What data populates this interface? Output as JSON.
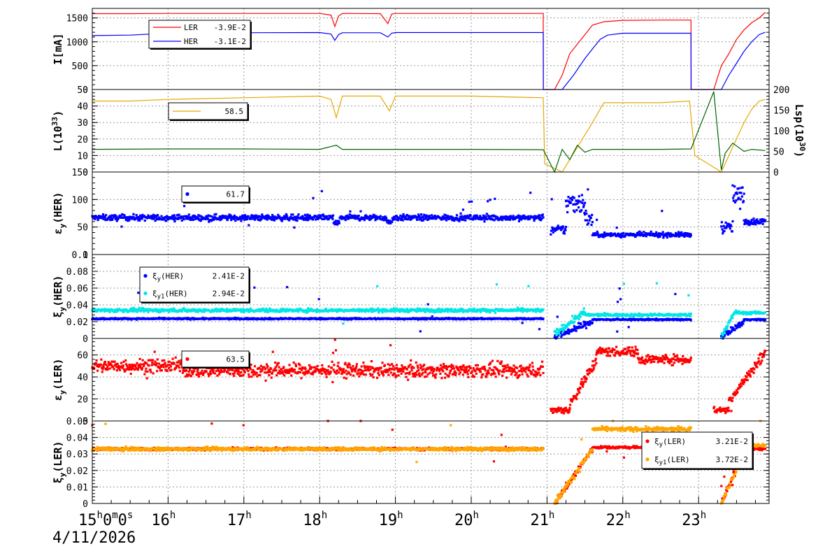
{
  "date_label": "4/11/2026",
  "x_ticks": [
    {
      "main": "15",
      "sup": "h",
      "main2": "0",
      "sup2": "m",
      "main3": "0",
      "sup3": "s"
    },
    {
      "main": "16",
      "sup": "h"
    },
    {
      "main": "17",
      "sup": "h"
    },
    {
      "main": "18",
      "sup": "h"
    },
    {
      "main": "19",
      "sup": "h"
    },
    {
      "main": "20",
      "sup": "h"
    },
    {
      "main": "21",
      "sup": "h"
    },
    {
      "main": "22",
      "sup": "h"
    },
    {
      "main": "23",
      "sup": "h"
    }
  ],
  "colors": {
    "ler": "#ff0000",
    "her": "#0000ff",
    "lum": "#e6a800",
    "lsp": "#006400",
    "cyan": "#00e5e5",
    "orange": "#ffa500",
    "grid": "#999999"
  },
  "chart_data": [
    {
      "type": "line",
      "ylabel": "I[mA]",
      "ylim": [
        0,
        1700
      ],
      "yticks": [
        "0",
        "500",
        "1000",
        "1500"
      ],
      "yticks_values": [
        0,
        500,
        1000,
        1500
      ],
      "legend": [
        {
          "name": "LER",
          "value": "-3.9E-2",
          "color": "#ff0000"
        },
        {
          "name": "HER",
          "value": "-3.1E-2",
          "color": "#0000ff"
        }
      ],
      "series": [
        {
          "name": "LER",
          "x": [
            15.0,
            15.5,
            16.0,
            17.0,
            18.0,
            18.15,
            18.2,
            18.25,
            18.3,
            18.8,
            18.9,
            18.95,
            19.0,
            20.0,
            20.95,
            20.951,
            21.1,
            21.2,
            21.3,
            21.45,
            21.6,
            21.75,
            22.0,
            22.5,
            22.9,
            22.901,
            23.2,
            23.3,
            23.4,
            23.5,
            23.6,
            23.7,
            23.8,
            23.88
          ],
          "y": [
            1590,
            1590,
            1595,
            1595,
            1595,
            1560,
            1320,
            1540,
            1595,
            1590,
            1380,
            1580,
            1595,
            1595,
            1595,
            0,
            0,
            300,
            750,
            1050,
            1350,
            1420,
            1450,
            1455,
            1455,
            0,
            0,
            500,
            750,
            1050,
            1250,
            1400,
            1500,
            1620
          ]
        },
        {
          "name": "HER",
          "x": [
            15.0,
            15.5,
            16.0,
            17.0,
            18.0,
            18.15,
            18.2,
            18.25,
            18.3,
            18.8,
            18.9,
            18.95,
            19.0,
            20.0,
            20.95,
            20.951,
            21.2,
            21.35,
            21.5,
            21.6,
            21.7,
            21.8,
            22.0,
            22.5,
            22.9,
            22.901,
            23.3,
            23.4,
            23.5,
            23.6,
            23.7,
            23.8,
            23.88
          ],
          "y": [
            1130,
            1140,
            1180,
            1190,
            1195,
            1160,
            1030,
            1150,
            1190,
            1190,
            1100,
            1180,
            1195,
            1195,
            1195,
            0,
            0,
            300,
            650,
            850,
            1050,
            1140,
            1180,
            1180,
            1180,
            0,
            0,
            300,
            550,
            800,
            1000,
            1150,
            1200
          ]
        }
      ]
    },
    {
      "type": "line",
      "ylabel": "L(10^33)",
      "ylabel_main": "L(10",
      "ylabel_sup": "33",
      "ylabel_end": ")",
      "ylim": [
        0,
        50
      ],
      "yticks": [
        "0",
        "10",
        "20",
        "30",
        "40",
        "50"
      ],
      "yticks_values": [
        0,
        10,
        20,
        30,
        40,
        50
      ],
      "y2label": "Lsp(10^30)",
      "y2label_main": "Lsp(10",
      "y2label_sup": "30",
      "y2label_end": ")",
      "y2lim": [
        0,
        200
      ],
      "y2ticks": [
        "0",
        "50",
        "100",
        "150",
        "200"
      ],
      "y2ticks_values": [
        0,
        50,
        100,
        150,
        200
      ],
      "legend": [
        {
          "name": "",
          "value": "58.5",
          "color": "#e6a800"
        }
      ],
      "series": [
        {
          "name": "L",
          "x": [
            15.0,
            15.5,
            16.0,
            17.0,
            18.0,
            18.15,
            18.22,
            18.3,
            18.8,
            18.92,
            19.0,
            20.0,
            20.95,
            20.97,
            21.2,
            21.4,
            21.6,
            21.75,
            22.0,
            22.5,
            22.88,
            22.95,
            23.3,
            23.4,
            23.5,
            23.6,
            23.7,
            23.8,
            23.88
          ],
          "y": [
            43,
            43,
            44,
            45,
            46,
            44,
            33,
            46,
            46,
            37,
            46,
            46,
            45,
            5,
            0,
            15,
            30,
            42,
            42,
            42,
            43,
            10,
            0,
            10,
            20,
            30,
            38,
            43,
            44
          ]
        },
        {
          "name": "Lsp",
          "axis": "y2",
          "x": [
            15.0,
            16.0,
            17.0,
            18.0,
            18.22,
            18.3,
            19.0,
            20.0,
            20.95,
            21.1,
            21.2,
            21.3,
            21.4,
            21.5,
            21.6,
            21.8,
            22.0,
            22.5,
            22.9,
            23.2,
            23.3,
            23.35,
            23.45,
            23.6,
            23.7,
            23.88
          ],
          "y": [
            55,
            56,
            56,
            55,
            65,
            55,
            55,
            55,
            54,
            0,
            55,
            30,
            65,
            48,
            55,
            55,
            55,
            55,
            56,
            195,
            5,
            45,
            70,
            50,
            55,
            52
          ]
        }
      ]
    },
    {
      "type": "scatter",
      "ylabel": "εy(HER)",
      "ylabel_main": "ε",
      "ylabel_sub": "y",
      "ylabel_end": "(HER)",
      "ylim": [
        0,
        150
      ],
      "yticks": [
        "0",
        "50",
        "100",
        "150"
      ],
      "yticks_values": [
        0,
        50,
        100,
        150
      ],
      "legend": [
        {
          "name": "",
          "value": "61.7",
          "color": "#0000ff"
        }
      ],
      "series": [
        {
          "name": "εy(HER)",
          "color": "#0000ff",
          "segments": [
            {
              "x0": 15.0,
              "x1": 20.95,
              "base": 67,
              "noise": 5,
              "dips": [
                [
                  18.22,
                  -10
                ],
                [
                  18.92,
                  -8
                ]
              ]
            },
            {
              "x0": 21.05,
              "x1": 21.25,
              "base": 45,
              "noise": 8
            },
            {
              "x0": 21.25,
              "x1": 21.5,
              "base": 95,
              "noise": 20
            },
            {
              "x0": 21.5,
              "x1": 21.6,
              "base": 65,
              "noise": 15
            },
            {
              "x0": 21.6,
              "x1": 22.9,
              "base": 36,
              "noise": 4
            },
            {
              "x0": 23.3,
              "x1": 23.45,
              "base": 50,
              "noise": 10
            },
            {
              "x0": 23.45,
              "x1": 23.6,
              "base": 105,
              "noise": 20
            },
            {
              "x0": 23.6,
              "x1": 23.88,
              "base": 60,
              "noise": 5
            }
          ]
        }
      ]
    },
    {
      "type": "scatter",
      "ylabel": "ξy(HER)",
      "ylabel_main": "ξ",
      "ylabel_sub": "y",
      "ylabel_end": "(HER)",
      "ylim": [
        0,
        0.1
      ],
      "yticks": [
        "0",
        "0.02",
        "0.04",
        "0.06",
        "0.08",
        "0.1"
      ],
      "yticks_values": [
        0,
        0.02,
        0.04,
        0.06,
        0.08,
        0.1
      ],
      "legend": [
        {
          "name": "ξy(HER)",
          "label_main": "ξ",
          "label_sub": "y",
          "label_end": "(HER)",
          "value": "2.41E-2",
          "color": "#0000ff"
        },
        {
          "name": "ξy1(HER)",
          "label_main": "ξ",
          "label_sub": "y1",
          "label_end": "(HER)",
          "value": "2.94E-2",
          "color": "#00e5e5"
        }
      ],
      "series": [
        {
          "name": "ξy(HER)",
          "color": "#0000ff",
          "segments": [
            {
              "x0": 15.0,
              "x1": 20.95,
              "base": 0.0235,
              "noise": 0.0008
            },
            {
              "x0": 21.1,
              "x1": 21.6,
              "base": 0.012,
              "noise": 0.004,
              "ramp": [
                0.002,
                0.02
              ]
            },
            {
              "x0": 21.6,
              "x1": 22.9,
              "base": 0.0225,
              "noise": 0.0008
            },
            {
              "x0": 23.3,
              "x1": 23.6,
              "base": 0.01,
              "noise": 0.003,
              "ramp": [
                0.002,
                0.02
              ]
            },
            {
              "x0": 23.6,
              "x1": 23.88,
              "base": 0.0225,
              "noise": 0.0008
            }
          ]
        },
        {
          "name": "ξy1(HER)",
          "color": "#00e5e5",
          "segments": [
            {
              "x0": 15.0,
              "x1": 20.95,
              "base": 0.0335,
              "noise": 0.002
            },
            {
              "x0": 21.1,
              "x1": 21.5,
              "base": 0.02,
              "noise": 0.004,
              "ramp": [
                0.005,
                0.032
              ]
            },
            {
              "x0": 21.5,
              "x1": 22.9,
              "base": 0.028,
              "noise": 0.0015
            },
            {
              "x0": 23.3,
              "x1": 23.5,
              "base": 0.02,
              "noise": 0.004,
              "ramp": [
                0.003,
                0.034
              ]
            },
            {
              "x0": 23.5,
              "x1": 23.88,
              "base": 0.0305,
              "noise": 0.0015
            }
          ]
        }
      ]
    },
    {
      "type": "scatter",
      "ylabel": "εy(LER)",
      "ylabel_main": "ε",
      "ylabel_sub": "y",
      "ylabel_end": "(LER)",
      "ylim": [
        0,
        75
      ],
      "yticks": [
        "0",
        "20",
        "40",
        "60"
      ],
      "yticks_values": [
        0,
        20,
        40,
        60
      ],
      "legend": [
        {
          "name": "",
          "value": "63.5",
          "color": "#ff0000"
        }
      ],
      "series": [
        {
          "name": "εy(LER)",
          "color": "#ff0000",
          "segments": [
            {
              "x0": 15.0,
              "x1": 16.2,
              "base": 50,
              "noise": 6
            },
            {
              "x0": 16.2,
              "x1": 20.95,
              "base": 46,
              "noise": 6
            },
            {
              "x0": 21.05,
              "x1": 21.3,
              "base": 10,
              "noise": 3
            },
            {
              "x0": 21.3,
              "x1": 21.65,
              "base": 30,
              "noise": 5,
              "ramp": [
                15,
                55
              ]
            },
            {
              "x0": 21.65,
              "x1": 22.2,
              "base": 63,
              "noise": 4
            },
            {
              "x0": 22.2,
              "x1": 22.9,
              "base": 56,
              "noise": 4
            },
            {
              "x0": 23.2,
              "x1": 23.4,
              "base": 10,
              "noise": 3
            },
            {
              "x0": 23.4,
              "x1": 23.88,
              "base": 40,
              "noise": 5,
              "ramp": [
                18,
                62
              ]
            }
          ]
        }
      ]
    },
    {
      "type": "scatter",
      "ylabel": "ξy(LER)",
      "ylabel_main": "ξ",
      "ylabel_sub": "y",
      "ylabel_end": "(LER)",
      "ylim": [
        0,
        0.05
      ],
      "yticks": [
        "0",
        "0.01",
        "0.02",
        "0.03",
        "0.04",
        "0.05"
      ],
      "yticks_values": [
        0,
        0.01,
        0.02,
        0.03,
        0.04,
        0.05
      ],
      "legend": [
        {
          "name": "ξy(LER)",
          "label_main": "ξ",
          "label_sub": "y",
          "label_end": "(LER)",
          "value": "3.21E-2",
          "color": "#ff0000"
        },
        {
          "name": "ξy1(LER)",
          "label_main": "ξ",
          "label_sub": "y1",
          "label_end": "(LER)",
          "value": "3.72E-2",
          "color": "#ffa500"
        }
      ],
      "series": [
        {
          "name": "ξy(LER)",
          "color": "#ff0000",
          "segments": [
            {
              "x0": 15.0,
              "x1": 20.95,
              "base": 0.033,
              "noise": 0.0007
            },
            {
              "x0": 21.1,
              "x1": 21.6,
              "base": 0.015,
              "noise": 0.002,
              "ramp": [
                0.0,
                0.033
              ]
            },
            {
              "x0": 21.6,
              "x1": 22.9,
              "base": 0.034,
              "noise": 0.0007
            },
            {
              "x0": 23.3,
              "x1": 23.6,
              "base": 0.015,
              "noise": 0.002,
              "ramp": [
                0.0,
                0.032
              ]
            },
            {
              "x0": 23.6,
              "x1": 23.88,
              "base": 0.033,
              "noise": 0.0007
            }
          ]
        },
        {
          "name": "ξy1(LER)",
          "color": "#ffa500",
          "segments": [
            {
              "x0": 15.0,
              "x1": 20.95,
              "base": 0.033,
              "noise": 0.001
            },
            {
              "x0": 21.1,
              "x1": 21.6,
              "base": 0.015,
              "noise": 0.002,
              "ramp": [
                0.0,
                0.033
              ]
            },
            {
              "x0": 21.6,
              "x1": 22.9,
              "base": 0.045,
              "noise": 0.0012
            },
            {
              "x0": 23.3,
              "x1": 23.6,
              "base": 0.015,
              "noise": 0.002,
              "ramp": [
                0.0,
                0.032
              ]
            },
            {
              "x0": 23.6,
              "x1": 23.88,
              "base": 0.035,
              "noise": 0.001
            }
          ]
        }
      ]
    }
  ]
}
